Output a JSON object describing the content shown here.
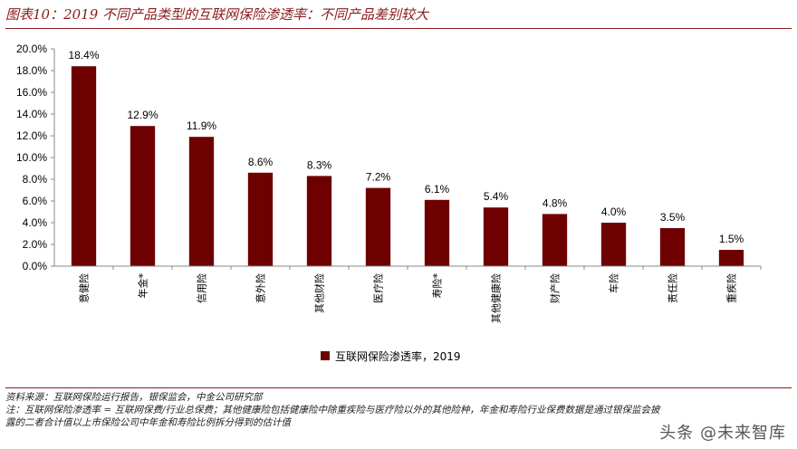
{
  "title": "图表10：2019 不同产品类型的互联网保险渗透率：不同产品差别较大",
  "colors": {
    "bar": "#6e0000",
    "title": "#8b1a1a",
    "rule": "#8b1a1a"
  },
  "chart_data": {
    "type": "bar",
    "categories": [
      "意健险",
      "年金*",
      "信用险",
      "意外险",
      "其他财险",
      "医疗险",
      "寿险*",
      "其他健康险",
      "财产险",
      "车险",
      "责任险",
      "重疾险"
    ],
    "series": [
      {
        "name": "互联网保险渗透率，2019",
        "values": [
          18.4,
          12.9,
          11.9,
          8.6,
          8.3,
          7.2,
          6.1,
          5.4,
          4.8,
          4.0,
          3.5,
          1.5
        ]
      }
    ],
    "data_labels": [
      "18.4%",
      "12.9%",
      "11.9%",
      "8.6%",
      "8.3%",
      "7.2%",
      "6.1%",
      "5.4%",
      "4.8%",
      "4.0%",
      "3.5%",
      "1.5%"
    ],
    "y_ticks": [
      "0.0%",
      "2.0%",
      "4.0%",
      "6.0%",
      "8.0%",
      "10.0%",
      "12.0%",
      "14.0%",
      "16.0%",
      "18.0%",
      "20.0%"
    ],
    "ylim": [
      0,
      20
    ],
    "grid": false,
    "legend_position": "bottom-center"
  },
  "notes": {
    "source": "资料来源：互联网保险运行报告，银保监会，中金公司研究部",
    "note_line1": "注：互联网保险渗透率 = 互联网保费/行业总保费；其他健康险包括健康险中除重疾险与医疗险以外的其他险种，年金和寿险行业保费数据是通过银保监会披",
    "note_line2": "露的二者合计值以上市保险公司中年金和寿险比例拆分得到的估计值"
  },
  "watermark": "头条 @未来智库"
}
